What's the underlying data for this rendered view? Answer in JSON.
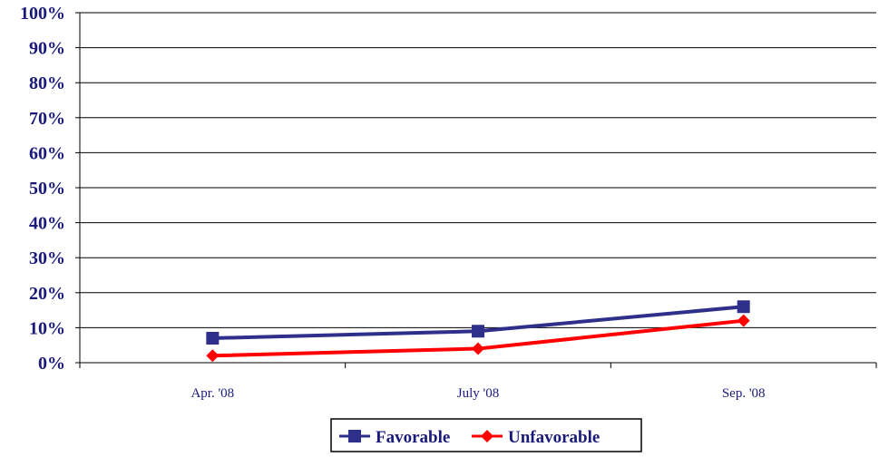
{
  "chart_data": {
    "type": "line",
    "categories": [
      "Apr. '08",
      "July '08",
      "Sep. '08"
    ],
    "series": [
      {
        "name": "Favorable",
        "values": [
          7,
          9,
          16
        ],
        "color": "#2e2e8b",
        "marker": "square"
      },
      {
        "name": "Unfavorable",
        "values": [
          2,
          4,
          12
        ],
        "color": "#ff0000",
        "marker": "diamond"
      }
    ],
    "yticks": [
      "0%",
      "10%",
      "20%",
      "30%",
      "40%",
      "50%",
      "60%",
      "70%",
      "80%",
      "90%",
      "100%"
    ],
    "ylim": [
      0,
      100
    ],
    "grid": true,
    "legend_position": "bottom",
    "colors": {
      "axis_text": "#1a1a7a",
      "grid": "#000000"
    }
  }
}
